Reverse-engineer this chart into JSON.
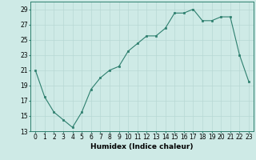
{
  "x": [
    0,
    1,
    2,
    3,
    4,
    5,
    6,
    7,
    8,
    9,
    10,
    11,
    12,
    13,
    14,
    15,
    16,
    17,
    18,
    19,
    20,
    21,
    22,
    23
  ],
  "y": [
    21,
    17.5,
    15.5,
    14.5,
    13.5,
    15.5,
    18.5,
    20,
    21,
    21.5,
    23.5,
    24.5,
    25.5,
    25.5,
    26.5,
    28.5,
    28.5,
    29,
    27.5,
    27.5,
    28,
    28,
    23,
    19.5
  ],
  "line_color": "#2d7f6e",
  "marker_color": "#2d7f6e",
  "bg_color": "#ceeae6",
  "grid_color": "#b8d8d4",
  "xlabel": "Humidex (Indice chaleur)",
  "xlim": [
    -0.5,
    23.5
  ],
  "ylim": [
    13,
    30
  ],
  "yticks": [
    13,
    15,
    17,
    19,
    21,
    23,
    25,
    27,
    29
  ],
  "xticks": [
    0,
    1,
    2,
    3,
    4,
    5,
    6,
    7,
    8,
    9,
    10,
    11,
    12,
    13,
    14,
    15,
    16,
    17,
    18,
    19,
    20,
    21,
    22,
    23
  ],
  "xlabel_fontsize": 6.5,
  "tick_fontsize": 5.5
}
